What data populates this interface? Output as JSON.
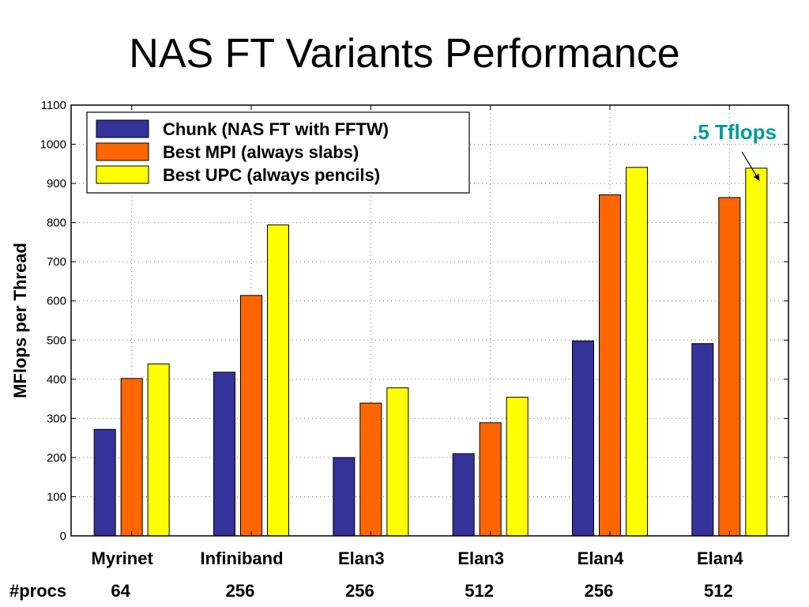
{
  "slide": {
    "title": "NAS FT Variants Performance"
  },
  "chart_data": {
    "type": "bar",
    "title": "",
    "ylabel": "MFlops per Thread",
    "xlabel": "",
    "ylim": [
      0,
      1100
    ],
    "yticks": [
      0,
      100,
      200,
      300,
      400,
      500,
      600,
      700,
      800,
      900,
      1000,
      1100
    ],
    "grid": true,
    "legend_position": "top-left",
    "categories": [
      "Myrinet",
      "Infiniband",
      "Elan3",
      "Elan3",
      "Elan4",
      "Elan4"
    ],
    "procs_label": "#procs",
    "procs": [
      "64",
      "256",
      "256",
      "512",
      "256",
      "512"
    ],
    "series": [
      {
        "name": "Chunk (NAS FT with FFTW)",
        "color": "#333399",
        "values": [
          272,
          418,
          200,
          210,
          498,
          491
        ]
      },
      {
        "name": "Best MPI (always slabs)",
        "color": "#ff6600",
        "values": [
          402,
          614,
          339,
          289,
          871,
          864
        ]
      },
      {
        "name": "Best UPC (always pencils)",
        "color": "#ffff00",
        "values": [
          439,
          794,
          378,
          354,
          941,
          939
        ]
      }
    ],
    "annotations": [
      {
        "text": ".5 Tflops",
        "color": "#009999",
        "target_category_index": 5,
        "target_series_index": 2
      }
    ]
  }
}
